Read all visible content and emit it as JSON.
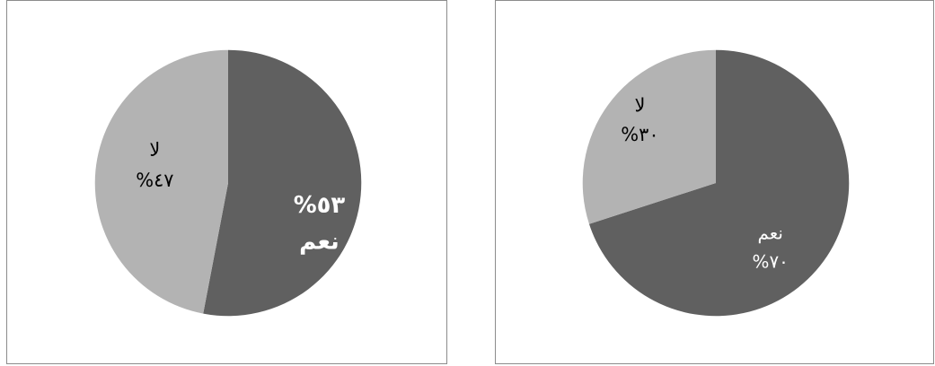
{
  "colors": {
    "yes": "#606060",
    "no": "#b3b3b3",
    "border": "#8c8c8c",
    "background": "#ffffff"
  },
  "chart_data": [
    {
      "type": "pie",
      "title": "",
      "slices": [
        {
          "category": "نعم",
          "value": 53,
          "label_percent": "%٥٣",
          "color": "#606060"
        },
        {
          "category": "لا",
          "value": 47,
          "label_percent": "%٤٧",
          "color": "#b3b3b3"
        }
      ],
      "start": "12 o'clock",
      "direction": "clockwise",
      "label_order": {
        "yes": "percent-above-category",
        "no": "category-above-percent"
      },
      "label_style": {
        "yes": "bold white",
        "no": "black"
      }
    },
    {
      "type": "pie",
      "title": "",
      "slices": [
        {
          "category": "نعم",
          "value": 70,
          "label_percent": "%٧٠",
          "color": "#606060"
        },
        {
          "category": "لا",
          "value": 30,
          "label_percent": "%٣٠",
          "color": "#b3b3b3"
        }
      ],
      "start": "12 o'clock",
      "direction": "clockwise",
      "label_order": {
        "yes": "category-above-percent",
        "no": "category-above-percent"
      },
      "label_style": {
        "yes": "white",
        "no": "black"
      }
    }
  ]
}
